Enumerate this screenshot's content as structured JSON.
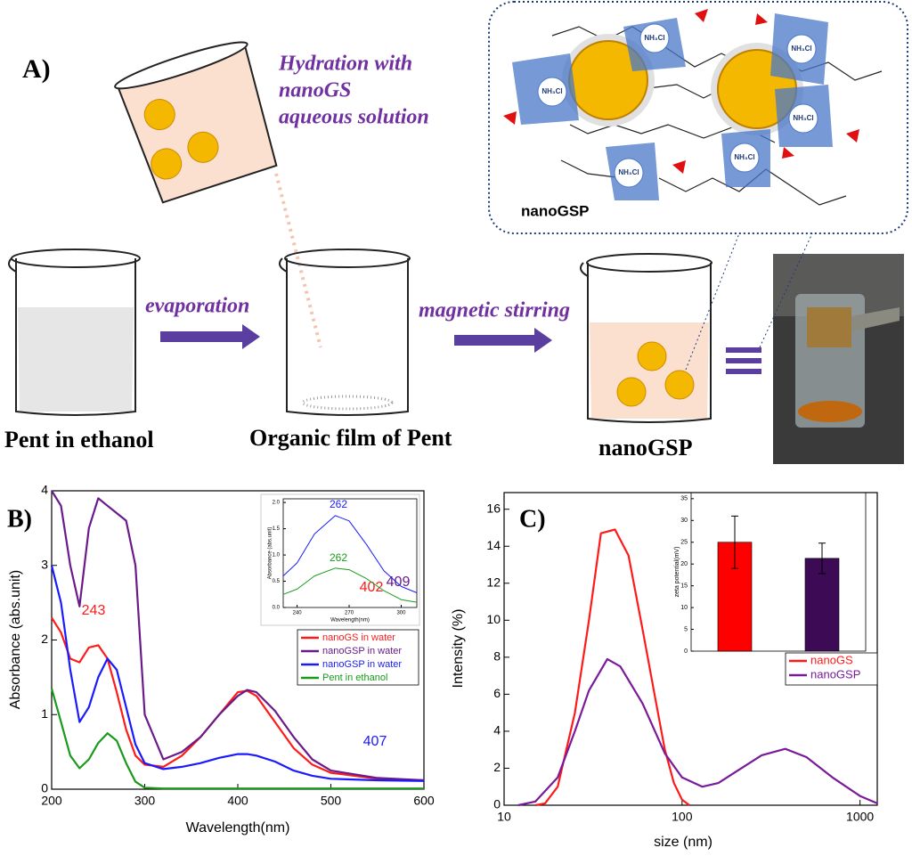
{
  "panel_a": {
    "label": "A)",
    "hydration": [
      "Hydration with",
      "nanoGS",
      "aqueous solution"
    ],
    "evaporation": "evaporation",
    "stirring": "magnetic stirring",
    "beakers": [
      "Pent in ethanol",
      "Organic film of Pent",
      "nanoGSP"
    ],
    "zoom_title": "nanoGSP",
    "nh3cl": [
      "NH₃Cl",
      "NH₃Cl",
      "NH₃Cl",
      "NH₃Cl",
      "NH₃Cl",
      "NH₃Cl"
    ]
  },
  "chart_data": [
    {
      "type": "line",
      "label": "B)",
      "xlabel": "Wavelength(nm)",
      "ylabel": "Absorbance (abs.unit)",
      "xlim": [
        200,
        600
      ],
      "xticks": [
        200,
        300,
        400,
        500,
        600
      ],
      "ylim": [
        0,
        4
      ],
      "yticks": [
        0,
        1,
        2,
        3,
        4
      ],
      "x": [
        200,
        210,
        220,
        230,
        240,
        250,
        260,
        270,
        280,
        290,
        300,
        320,
        340,
        360,
        380,
        400,
        410,
        420,
        440,
        460,
        480,
        500,
        550,
        600
      ],
      "series": [
        {
          "name": "nanoGS in water",
          "color": "#ff1a1a",
          "values": [
            2.3,
            2.1,
            1.75,
            1.7,
            1.9,
            1.93,
            1.75,
            1.3,
            0.8,
            0.45,
            0.33,
            0.3,
            0.45,
            0.7,
            1.0,
            1.3,
            1.32,
            1.25,
            0.9,
            0.55,
            0.33,
            0.22,
            0.14,
            0.12
          ]
        },
        {
          "name": "nanoGSP in water",
          "color": "#6a1a8a",
          "values": [
            4,
            3.8,
            3.0,
            2.45,
            3.5,
            3.9,
            3.8,
            3.7,
            3.6,
            3.0,
            1.0,
            0.4,
            0.5,
            0.7,
            1.0,
            1.25,
            1.33,
            1.3,
            1.05,
            0.7,
            0.4,
            0.25,
            0.15,
            0.12
          ]
        },
        {
          "name": "nanoGSP in water",
          "color": "#1a1aff",
          "values": [
            3.0,
            2.5,
            1.6,
            0.9,
            1.1,
            1.5,
            1.75,
            1.6,
            1.1,
            0.6,
            0.35,
            0.27,
            0.3,
            0.35,
            0.42,
            0.47,
            0.47,
            0.45,
            0.37,
            0.25,
            0.18,
            0.14,
            0.12,
            0.11
          ]
        },
        {
          "name": "Pent in ethanol",
          "color": "#1a9a1a",
          "values": [
            1.35,
            0.9,
            0.45,
            0.28,
            0.4,
            0.62,
            0.75,
            0.65,
            0.35,
            0.1,
            0.02,
            0.01,
            0.01,
            0.01,
            0.01,
            0.01,
            0.01,
            0.01,
            0.01,
            0.01,
            0.01,
            0.01,
            0.01,
            0.01
          ]
        }
      ],
      "annotations": [
        {
          "text": "243",
          "color": "#ff1a1a"
        },
        {
          "text": "402",
          "color": "#ff1a1a"
        },
        {
          "text": "409",
          "color": "#6a1a8a"
        },
        {
          "text": "407",
          "color": "#1a1aff"
        }
      ]
    },
    {
      "type": "line",
      "xlabel": "Wavelength(nm)",
      "ylabel": "Absorbance (abs.unit)",
      "xlim": [
        232,
        309
      ],
      "xticks": [
        240,
        270,
        300
      ],
      "ylim": [
        0,
        2.07
      ],
      "yticks": [
        {
          "value": 0,
          "label": "0.0"
        },
        {
          "value": 0.5,
          "label": "0.5"
        },
        {
          "value": 1,
          "label": "1.0"
        },
        {
          "value": 1.5,
          "label": "1.5"
        },
        {
          "value": 2,
          "label": "2.0"
        }
      ],
      "x": [
        232,
        240,
        250,
        262,
        270,
        280,
        290,
        300,
        309
      ],
      "series": [
        {
          "color": "#1a1aff",
          "values": [
            0.6,
            0.85,
            1.4,
            1.75,
            1.65,
            1.2,
            0.7,
            0.4,
            0.28
          ]
        },
        {
          "color": "#1a9a1a",
          "values": [
            0.25,
            0.35,
            0.6,
            0.75,
            0.72,
            0.55,
            0.32,
            0.15,
            0.1
          ]
        }
      ],
      "annotations": [
        {
          "text": "262",
          "color": "#1a1aff"
        },
        {
          "text": "262",
          "color": "#1a9a1a"
        }
      ]
    },
    {
      "type": "line",
      "label": "C)",
      "xlabel": "size (nm)",
      "ylabel": "Intensity (%)",
      "xscale": "log",
      "xlim": [
        10,
        1250
      ],
      "xticks": [
        10,
        100,
        1000
      ],
      "ylim": [
        0,
        16.9
      ],
      "yticks": [
        0,
        2,
        4,
        6,
        8,
        10,
        12,
        14,
        16
      ],
      "series": [
        {
          "name": "nanoGS",
          "color": "#ff1a1a",
          "x": [
            15,
            17,
            20,
            25,
            30,
            35,
            42,
            50,
            60,
            70,
            80,
            90,
            100,
            110
          ],
          "values": [
            0,
            0.1,
            1,
            5,
            10,
            14.7,
            14.9,
            13.5,
            9.5,
            6,
            3,
            1.2,
            0.3,
            0
          ]
        },
        {
          "name": "nanoGSP",
          "color": "#7a1a9a",
          "x": [
            12,
            15,
            20,
            25,
            30,
            38,
            45,
            60,
            80,
            100,
            130,
            160,
            200,
            280,
            380,
            500,
            700,
            1000,
            1250
          ],
          "values": [
            0,
            0.2,
            1.5,
            4,
            6.2,
            7.9,
            7.5,
            5.5,
            2.8,
            1.5,
            1.0,
            1.2,
            1.8,
            2.7,
            3.05,
            2.6,
            1.5,
            0.5,
            0.1
          ]
        }
      ]
    },
    {
      "type": "bar",
      "ylabel": "zeta potential(mV)",
      "categories": [
        null,
        null
      ],
      "values": [
        25,
        21.3
      ],
      "errors": [
        6,
        3.5
      ],
      "colors": [
        "#ff0000",
        "#3d0a55"
      ],
      "ylim": [
        0,
        36.4
      ],
      "yticks": [
        0,
        5,
        10,
        15,
        20,
        25,
        30,
        35
      ]
    }
  ]
}
